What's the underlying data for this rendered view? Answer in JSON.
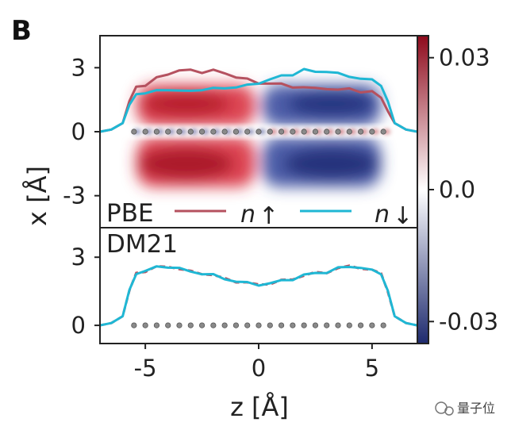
{
  "panel_letter": "B",
  "watermark": "量子位",
  "chart_data": {
    "type": "heatmap",
    "xlabel": "z [Å]",
    "ylabel": "x [Å]",
    "xlim": [
      -7,
      7
    ],
    "x_ticks": [
      {
        "v": -5,
        "label": "-5"
      },
      {
        "v": 0,
        "label": "0"
      },
      {
        "v": 5,
        "label": "5"
      }
    ],
    "colorbar": {
      "range": [
        -0.035,
        0.035
      ],
      "ticks": [
        {
          "v": 0.03,
          "label": "0.03"
        },
        {
          "v": 0.0,
          "label": "0.0"
        },
        {
          "v": -0.03,
          "label": "-0.03"
        }
      ],
      "colors": [
        "#1e2a6e",
        "#ffffff",
        "#8e0a1c"
      ]
    },
    "legend": [
      {
        "label": "n",
        "sub": "↑",
        "color": "#b5515f"
      },
      {
        "label": "n",
        "sub": "↓",
        "color": "#1fb7d4"
      }
    ],
    "panels": [
      {
        "label": "PBE",
        "ylim": [
          -4.5,
          4.5
        ],
        "y_ticks": [
          {
            "v": 3,
            "label": "3"
          },
          {
            "v": 0,
            "label": "0"
          },
          {
            "v": -3,
            "label": "-3"
          }
        ],
        "spin_density_amplitude": 0.035,
        "z": [
          -7.0,
          -6.5,
          -6.0,
          -5.7,
          -5.4,
          -5.0,
          -4.5,
          -4.0,
          -3.5,
          -3.0,
          -2.5,
          -2.0,
          -1.5,
          -1.0,
          -0.5,
          0.0,
          0.5,
          1.0,
          1.5,
          2.0,
          2.5,
          3.0,
          3.5,
          4.0,
          4.5,
          5.0,
          5.4,
          5.7,
          6.0,
          6.5,
          7.0
        ],
        "series": [
          {
            "name": "n↑",
            "values": [
              0.0,
              0.1,
              0.4,
              1.4,
              2.1,
              2.2,
              2.5,
              2.7,
              2.9,
              2.85,
              2.8,
              2.9,
              2.7,
              2.6,
              2.45,
              2.25,
              2.3,
              2.2,
              2.1,
              2.1,
              2.0,
              2.05,
              1.95,
              2.0,
              1.9,
              1.85,
              1.6,
              1.0,
              0.4,
              0.1,
              0.0
            ]
          },
          {
            "name": "n↓",
            "values": [
              0.0,
              0.1,
              0.4,
              1.2,
              1.8,
              1.8,
              1.9,
              2.0,
              1.9,
              1.9,
              2.0,
              2.0,
              2.05,
              2.1,
              2.15,
              2.3,
              2.45,
              2.6,
              2.7,
              2.9,
              2.8,
              2.85,
              2.7,
              2.6,
              2.5,
              2.4,
              2.2,
              1.4,
              0.4,
              0.1,
              0.0
            ]
          }
        ],
        "atoms_z": [
          -5.5,
          -5.0,
          -4.5,
          -4.0,
          -3.5,
          -3.0,
          -2.5,
          -2.0,
          -1.5,
          -1.0,
          -0.5,
          0.0,
          0.5,
          1.0,
          1.5,
          2.0,
          2.5,
          3.0,
          3.5,
          4.0,
          4.5,
          5.0,
          5.5
        ]
      },
      {
        "label": "DM21",
        "ylim": [
          -0.8,
          4.3
        ],
        "y_ticks": [
          {
            "v": 3,
            "label": "3"
          },
          {
            "v": 0,
            "label": "0"
          }
        ],
        "spin_density_amplitude": 0.0,
        "z": [
          -7.0,
          -6.5,
          -6.0,
          -5.7,
          -5.4,
          -5.0,
          -4.5,
          -4.0,
          -3.5,
          -3.0,
          -2.5,
          -2.0,
          -1.5,
          -1.0,
          -0.5,
          0.0,
          0.5,
          1.0,
          1.5,
          2.0,
          2.5,
          3.0,
          3.5,
          4.0,
          4.5,
          5.0,
          5.4,
          5.7,
          6.0,
          6.5,
          7.0
        ],
        "series": [
          {
            "name": "n↑",
            "values": [
              0.0,
              0.1,
              0.4,
              1.5,
              2.3,
              2.4,
              2.55,
              2.6,
              2.5,
              2.35,
              2.3,
              2.2,
              2.05,
              1.95,
              1.85,
              1.8,
              1.85,
              1.95,
              2.05,
              2.2,
              2.3,
              2.35,
              2.5,
              2.6,
              2.55,
              2.4,
              2.3,
              1.5,
              0.4,
              0.1,
              0.0
            ]
          },
          {
            "name": "n↓",
            "values": [
              0.0,
              0.1,
              0.4,
              1.5,
              2.3,
              2.4,
              2.55,
              2.6,
              2.5,
              2.35,
              2.3,
              2.2,
              2.05,
              1.95,
              1.85,
              1.8,
              1.85,
              1.95,
              2.05,
              2.2,
              2.3,
              2.35,
              2.5,
              2.6,
              2.55,
              2.4,
              2.3,
              1.5,
              0.4,
              0.1,
              0.0
            ]
          }
        ],
        "atoms_z": [
          -5.5,
          -5.0,
          -4.5,
          -4.0,
          -3.5,
          -3.0,
          -2.5,
          -2.0,
          -1.5,
          -1.0,
          -0.5,
          0.0,
          0.5,
          1.0,
          1.5,
          2.0,
          2.5,
          3.0,
          3.5,
          4.0,
          4.5,
          5.0,
          5.5
        ]
      }
    ]
  }
}
